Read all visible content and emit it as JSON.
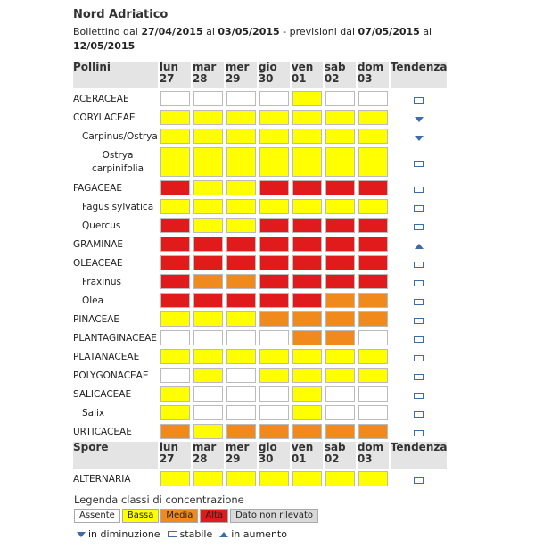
{
  "header": {
    "title": "Nord Adriatico",
    "subtitle_prefix": "Bollettino dal",
    "date_from": "27/04/2015",
    "mid_a": "al",
    "date_to": "03/05/2015",
    "mid_b": "- previsioni dal",
    "forecast_from": "07/05/2015",
    "mid_c": "al",
    "forecast_to": "12/05/2015"
  },
  "colors": {
    "assente": "#ffffff",
    "bassa": "#ffff00",
    "media": "#f08a1c",
    "alta": "#e11b1b",
    "non_rilevato": "#d9d9d9",
    "header_bg": "#e4e4e4",
    "arrow": "#3b6ea8"
  },
  "days": [
    {
      "d": "lun",
      "n": "27"
    },
    {
      "d": "mar",
      "n": "28"
    },
    {
      "d": "mer",
      "n": "29"
    },
    {
      "d": "gio",
      "n": "30"
    },
    {
      "d": "ven",
      "n": "01"
    },
    {
      "d": "sab",
      "n": "02"
    },
    {
      "d": "dom",
      "n": "03"
    }
  ],
  "pollen_header": "Pollini",
  "spore_header": "Spore",
  "trend_header": "Tendenza",
  "pollini": [
    {
      "name": "ACERACEAE",
      "sub": false,
      "cells": [
        "A",
        "A",
        "A",
        "A",
        "B",
        "A",
        "A"
      ],
      "trend": "stable"
    },
    {
      "name": "CORYLACEAE",
      "sub": false,
      "cells": [
        "B",
        "B",
        "B",
        "B",
        "B",
        "B",
        "B"
      ],
      "trend": "down"
    },
    {
      "name": "Carpinus/Ostrya",
      "sub": true,
      "cells": [
        "B",
        "B",
        "B",
        "B",
        "B",
        "B",
        "B"
      ],
      "trend": "down"
    },
    {
      "name": "Ostrya carpinifolia",
      "sub": true,
      "two": true,
      "l1": "Ostrya",
      "l2": "carpinifolia",
      "cells": [
        "B",
        "B",
        "B",
        "B",
        "B",
        "B",
        "B"
      ],
      "trend": "stable"
    },
    {
      "name": "FAGACEAE",
      "sub": false,
      "cells": [
        "H",
        "B",
        "B",
        "H",
        "H",
        "H",
        "H"
      ],
      "trend": "stable"
    },
    {
      "name": "Fagus sylvatica",
      "sub": true,
      "cells": [
        "B",
        "B",
        "B",
        "B",
        "B",
        "B",
        "B"
      ],
      "trend": "stable"
    },
    {
      "name": "Quercus",
      "sub": true,
      "cells": [
        "H",
        "B",
        "B",
        "H",
        "H",
        "H",
        "H"
      ],
      "trend": "stable"
    },
    {
      "name": "GRAMINAE",
      "sub": false,
      "cells": [
        "H",
        "H",
        "H",
        "H",
        "H",
        "H",
        "H"
      ],
      "trend": "up"
    },
    {
      "name": "OLEACEAE",
      "sub": false,
      "cells": [
        "H",
        "H",
        "H",
        "H",
        "H",
        "H",
        "H"
      ],
      "trend": "stable"
    },
    {
      "name": "Fraxinus",
      "sub": true,
      "cells": [
        "H",
        "M",
        "M",
        "H",
        "H",
        "H",
        "H"
      ],
      "trend": "stable"
    },
    {
      "name": "Olea",
      "sub": true,
      "cells": [
        "H",
        "H",
        "H",
        "H",
        "H",
        "M",
        "M"
      ],
      "trend": "stable"
    },
    {
      "name": "PINACEAE",
      "sub": false,
      "cells": [
        "B",
        "B",
        "B",
        "M",
        "M",
        "M",
        "M"
      ],
      "trend": "stable"
    },
    {
      "name": "PLANTAGINACEAE",
      "sub": false,
      "cells": [
        "A",
        "A",
        "A",
        "A",
        "M",
        "M",
        "A"
      ],
      "trend": "stable"
    },
    {
      "name": "PLATANACEAE",
      "sub": false,
      "cells": [
        "B",
        "B",
        "B",
        "B",
        "B",
        "B",
        "B"
      ],
      "trend": "stable"
    },
    {
      "name": "POLYGONACEAE",
      "sub": false,
      "cells": [
        "A",
        "B",
        "A",
        "B",
        "B",
        "B",
        "B"
      ],
      "trend": "stable"
    },
    {
      "name": "SALICACEAE",
      "sub": false,
      "cells": [
        "B",
        "A",
        "A",
        "A",
        "B",
        "A",
        "A"
      ],
      "trend": "stable"
    },
    {
      "name": "Salix",
      "sub": true,
      "cells": [
        "B",
        "A",
        "A",
        "A",
        "B",
        "A",
        "A"
      ],
      "trend": "stable"
    },
    {
      "name": "URTICACEAE",
      "sub": false,
      "cells": [
        "M",
        "B",
        "M",
        "M",
        "M",
        "M",
        "M"
      ],
      "trend": "stable"
    }
  ],
  "spore": [
    {
      "name": "ALTERNARIA",
      "sub": false,
      "cells": [
        "B",
        "B",
        "B",
        "B",
        "B",
        "B",
        "B"
      ],
      "trend": "stable"
    }
  ],
  "legend": {
    "title": "Legenda classi di concentrazione",
    "items": [
      {
        "key": "A",
        "label": "Assente"
      },
      {
        "key": "B",
        "label": "Bassa"
      },
      {
        "key": "M",
        "label": "Media"
      },
      {
        "key": "H",
        "label": "Alta"
      },
      {
        "key": "N",
        "label": "Dato non rilevato"
      }
    ],
    "trend_down": "in diminuzione",
    "trend_stable": "stabile",
    "trend_up": "in aumento"
  }
}
